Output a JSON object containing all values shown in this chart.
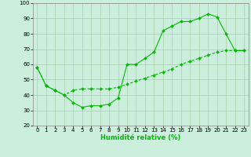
{
  "xlabel": "Humidité relative (%)",
  "background_color": "#cceedd",
  "grid_color": "#aaccaa",
  "line_color": "#00bb00",
  "ylim": [
    20,
    100
  ],
  "xlim": [
    -0.5,
    23.5
  ],
  "yticks": [
    20,
    30,
    40,
    50,
    60,
    70,
    80,
    90,
    100
  ],
  "xticks": [
    0,
    1,
    2,
    3,
    4,
    5,
    6,
    7,
    8,
    9,
    10,
    11,
    12,
    13,
    14,
    15,
    16,
    17,
    18,
    19,
    20,
    21,
    22,
    23
  ],
  "line1_x": [
    0,
    1,
    2,
    3,
    4,
    5,
    6,
    7,
    8,
    9,
    10,
    11,
    12,
    13,
    14,
    15,
    16,
    17,
    18,
    19,
    20,
    21,
    22,
    23
  ],
  "line1_y": [
    58,
    46,
    43,
    40,
    35,
    32,
    33,
    33,
    34,
    38,
    60,
    60,
    64,
    68,
    82,
    85,
    88,
    88,
    90,
    93,
    91,
    80,
    69,
    69
  ],
  "line2_x": [
    0,
    1,
    2,
    3,
    4,
    5,
    6,
    7,
    8,
    9,
    10,
    11,
    12,
    13,
    14,
    15,
    16,
    17,
    18,
    19,
    20,
    21,
    22,
    23
  ],
  "line2_y": [
    58,
    46,
    43,
    40,
    43,
    44,
    44,
    44,
    44,
    45,
    47,
    49,
    51,
    53,
    55,
    57,
    60,
    62,
    64,
    66,
    68,
    69,
    69,
    69
  ],
  "tick_fontsize": 5,
  "xlabel_fontsize": 6,
  "marker_size": 2.0,
  "linewidth": 0.8
}
